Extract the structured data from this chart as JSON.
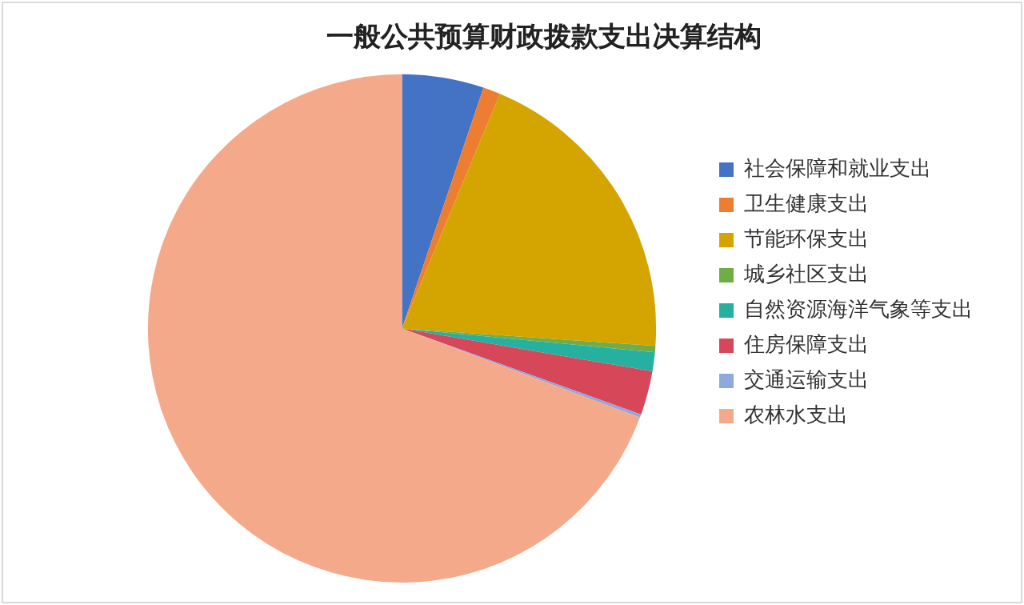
{
  "chart_data": {
    "type": "pie",
    "title": "一般公共预算财政拨款支出决算结构",
    "categories": [
      "社会保障和就业支出",
      "卫生健康支出",
      "节能环保支出",
      "城乡社区支出",
      "自然资源海洋气象等支出",
      "住房保障支出",
      "交通运输支出",
      "农林水支出"
    ],
    "values": [
      5.2,
      1.1,
      19.8,
      0.4,
      1.2,
      2.8,
      0.2,
      69.3
    ],
    "colors": [
      "#4472c4",
      "#ed7d31",
      "#d4a500",
      "#70ad47",
      "#26b0a0",
      "#d6475a",
      "#8fa8de",
      "#f4aa8a"
    ],
    "legend": "right"
  }
}
